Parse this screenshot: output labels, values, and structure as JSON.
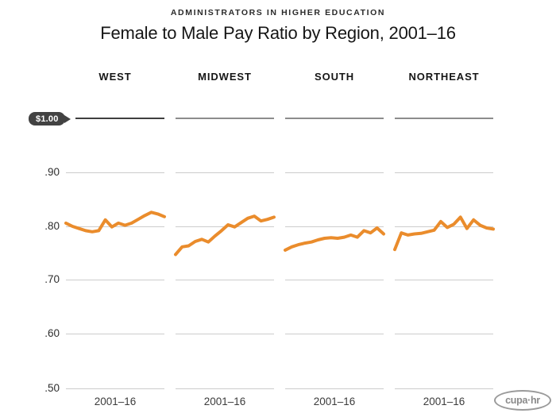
{
  "header": {
    "kicker": "ADMINISTRATORS IN HIGHER EDUCATION",
    "title": "Female to Male Pay Ratio by Region, 2001–16"
  },
  "axis": {
    "unit_label": "$1.00",
    "yticks": [
      ".90",
      ".80",
      ".70",
      ".60",
      ".50"
    ],
    "x_label": "2001–16"
  },
  "logo": {
    "text": "cupa·hr"
  },
  "colors": {
    "line": "#EA8C2C",
    "gridline": "#cccccc",
    "dollar_line_first": "#3f3f3f",
    "dollar_line_rest": "#8c8c8c",
    "badge_bg": "#424242"
  },
  "chart_data": {
    "type": "line",
    "title": "Female to Male Pay Ratio by Region, 2001–16",
    "subtitle": "ADMINISTRATORS IN HIGHER EDUCATION",
    "x": [
      2001,
      2002,
      2003,
      2004,
      2005,
      2006,
      2007,
      2008,
      2009,
      2010,
      2011,
      2012,
      2013,
      2014,
      2015,
      2016
    ],
    "x_axis_label": "2001–16",
    "ylim": [
      0.5,
      1.0
    ],
    "ytick_values": [
      1.0,
      0.9,
      0.8,
      0.7,
      0.6,
      0.5
    ],
    "legend": "none",
    "layout": "four small multiples sharing one y axis",
    "panels": [
      {
        "name": "WEST",
        "values": [
          0.806,
          0.8,
          0.796,
          0.792,
          0.79,
          0.792,
          0.812,
          0.799,
          0.806,
          0.802,
          0.806,
          0.813,
          0.82,
          0.826,
          0.823,
          0.818
        ]
      },
      {
        "name": "MIDWEST",
        "values": [
          0.748,
          0.762,
          0.764,
          0.772,
          0.776,
          0.771,
          0.782,
          0.792,
          0.803,
          0.799,
          0.807,
          0.815,
          0.819,
          0.81,
          0.813,
          0.817
        ]
      },
      {
        "name": "SOUTH",
        "values": [
          0.756,
          0.762,
          0.766,
          0.769,
          0.771,
          0.775,
          0.778,
          0.779,
          0.778,
          0.78,
          0.784,
          0.78,
          0.792,
          0.788,
          0.797,
          0.786
        ]
      },
      {
        "name": "NORTHEAST",
        "values": [
          0.757,
          0.788,
          0.784,
          0.786,
          0.787,
          0.79,
          0.793,
          0.809,
          0.798,
          0.804,
          0.817,
          0.796,
          0.812,
          0.802,
          0.797,
          0.795
        ]
      }
    ]
  }
}
